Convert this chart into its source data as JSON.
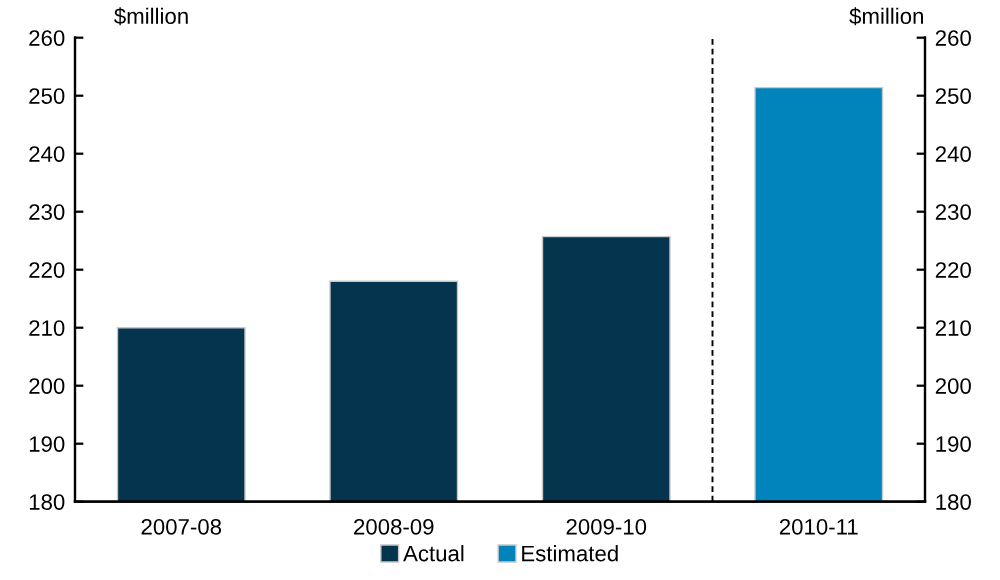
{
  "chart_data": {
    "type": "bar",
    "ylabel": "$million",
    "y2label": "$million",
    "categories": [
      "2007-08",
      "2008-09",
      "2009-10",
      "2010-11"
    ],
    "series": [
      {
        "name": "Actual",
        "color": "#05344f",
        "values": [
          210,
          218,
          225.7,
          null
        ]
      },
      {
        "name": "Estimated",
        "color": "#0084bb",
        "values": [
          null,
          null,
          null,
          251.4
        ]
      }
    ],
    "ylim": [
      180,
      260
    ],
    "yticks": [
      180,
      190,
      200,
      210,
      220,
      230,
      240,
      250,
      260
    ],
    "y2lim": [
      180,
      260
    ],
    "y2ticks": [
      180,
      190,
      200,
      210,
      220,
      230,
      240,
      250,
      260
    ],
    "grid": false,
    "legend": "bottom"
  }
}
